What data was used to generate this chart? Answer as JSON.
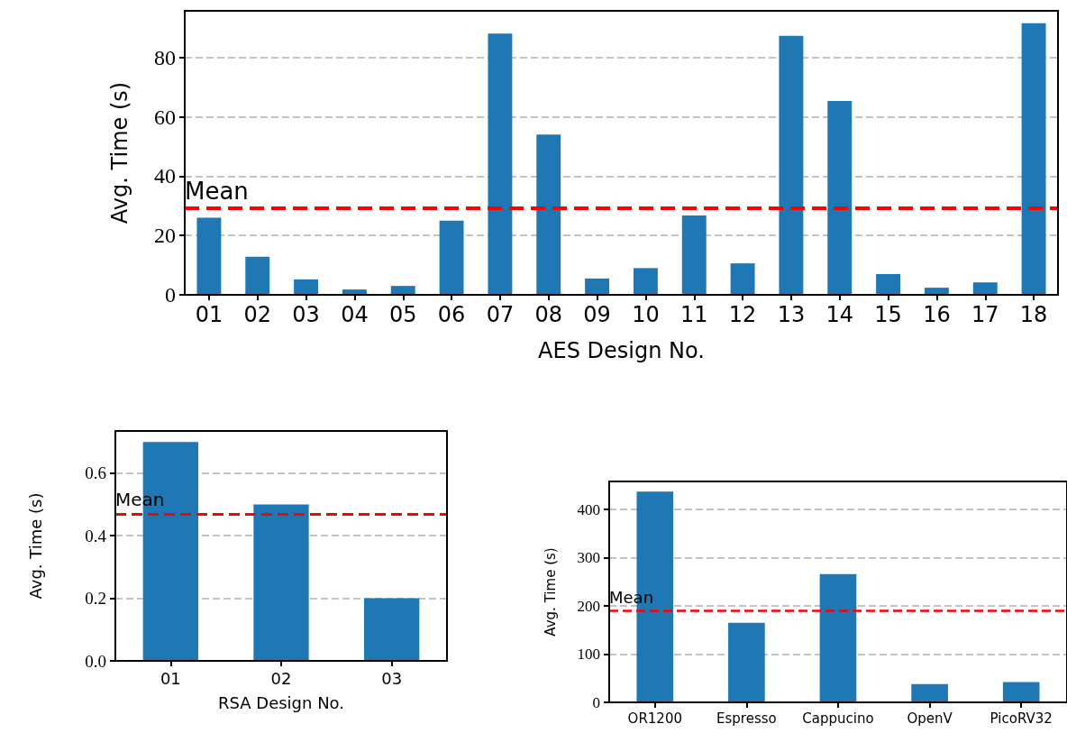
{
  "chart_data": [
    {
      "type": "bar",
      "xlabel": "AES Design No.",
      "ylabel": "Avg. Time (s)",
      "categories": [
        "01",
        "02",
        "03",
        "04",
        "05",
        "06",
        "07",
        "08",
        "09",
        "10",
        "11",
        "12",
        "13",
        "14",
        "15",
        "16",
        "17",
        "18"
      ],
      "values": [
        26,
        12.8,
        5.2,
        1.8,
        3,
        25,
        88,
        54,
        5.5,
        9,
        26.7,
        10.6,
        87.3,
        65.3,
        7,
        2.4,
        4.2,
        91.5
      ],
      "color": "#1f77b4",
      "ylim": [
        0,
        95.7
      ],
      "yticks": [
        0,
        20,
        40,
        60,
        80
      ],
      "grid": "y",
      "ref_lines": [
        {
          "axis": "y",
          "value": 29.2,
          "label": "Mean",
          "color": "#ff0000",
          "line_style": "dashed"
        }
      ]
    },
    {
      "type": "bar",
      "xlabel": "RSA Design No.",
      "ylabel": "Avg. Time (s)",
      "categories": [
        "01",
        "02",
        "03"
      ],
      "values": [
        0.7,
        0.5,
        0.2
      ],
      "color": "#1f77b4",
      "ylim": [
        0,
        0.735
      ],
      "yticks": [
        {
          "value": 0,
          "label": "0.0"
        },
        0.2,
        0.4,
        0.6
      ],
      "grid": "y",
      "ref_lines": [
        {
          "axis": "y",
          "value": 0.467,
          "label": "Mean",
          "color": "#ff0000",
          "line_style": "dashed"
        }
      ]
    },
    {
      "type": "bar",
      "ylabel": "Avg. Time (s)",
      "categories": [
        "OR1200",
        "Espresso",
        "Cappucino",
        "OpenV",
        "PicoRV32"
      ],
      "values": [
        437,
        165,
        266,
        38,
        42
      ],
      "color": "#1f77b4",
      "ylim": [
        0,
        458
      ],
      "yticks": [
        0,
        100,
        200,
        300,
        400
      ],
      "grid": "y",
      "ref_lines": [
        {
          "axis": "y",
          "value": 190,
          "label": "Mean",
          "color": "#ff0000",
          "line_style": "dashed"
        }
      ]
    }
  ]
}
